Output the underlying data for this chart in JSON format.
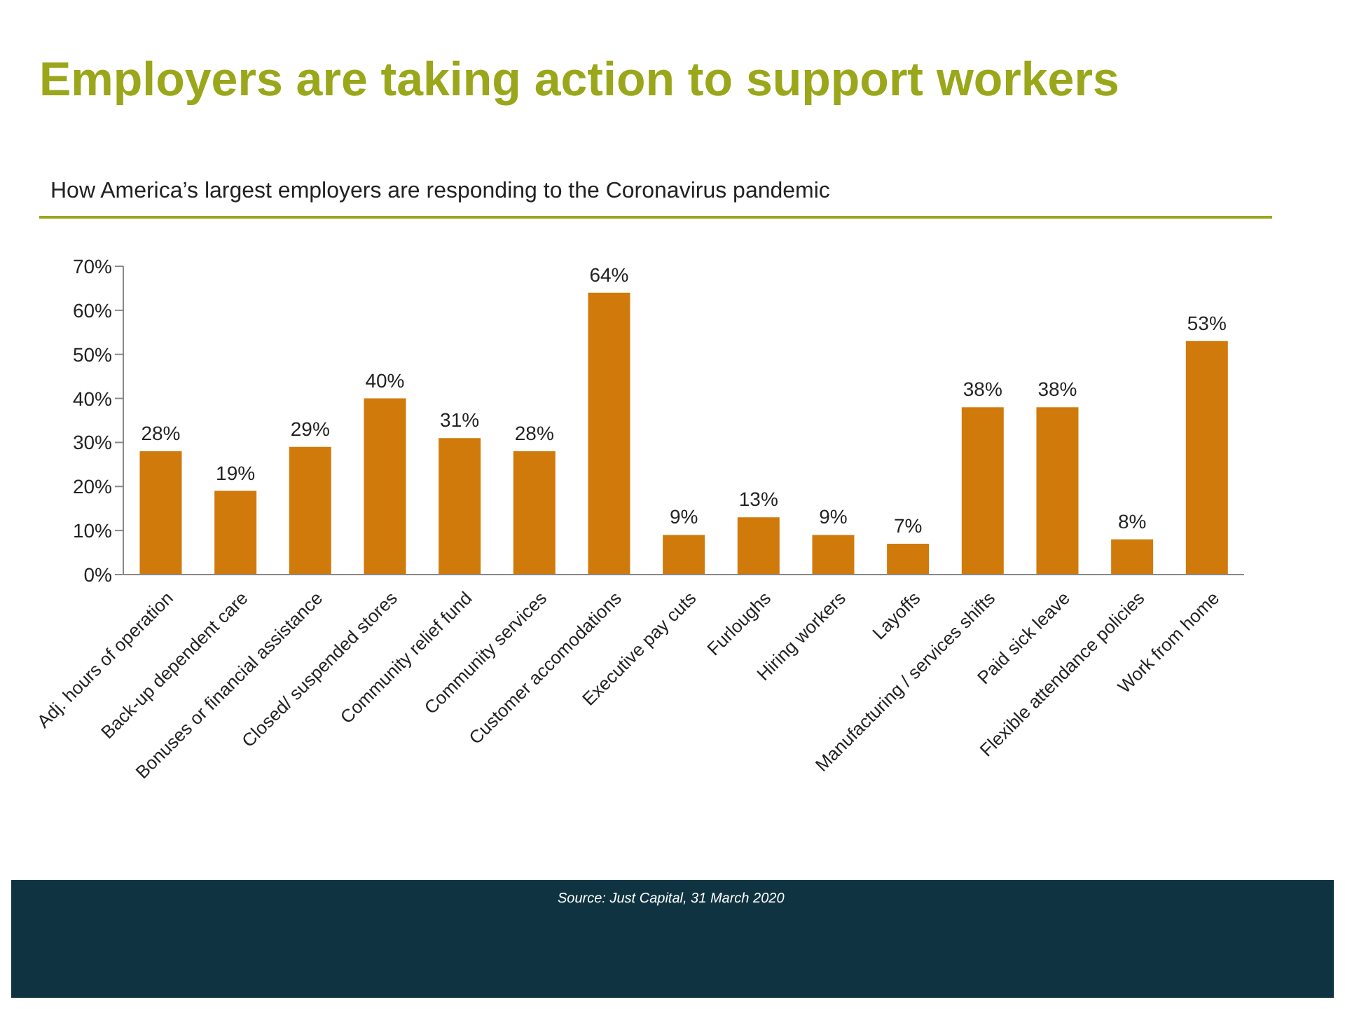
{
  "chart_data": {
    "type": "bar",
    "title": "Employers are taking action to support workers",
    "subtitle": "How America’s largest employers are responding to the Coronavirus pandemic",
    "categories": [
      "Adj. hours of operation",
      "Back-up dependent care",
      "Bonuses or financial assistance",
      "Closed/ suspended stores",
      "Community relief fund",
      "Community services",
      "Customer accomodations",
      "Executive pay cuts",
      "Furloughs",
      "Hiring workers",
      "Layoffs",
      "Manufacturing / services shifts",
      "Paid sick leave",
      "Flexible attendance policies",
      "Work from home"
    ],
    "values": [
      28,
      19,
      29,
      40,
      31,
      28,
      64,
      9,
      13,
      9,
      7,
      38,
      38,
      8,
      53
    ],
    "value_labels": [
      "28%",
      "19%",
      "29%",
      "40%",
      "31%",
      "28%",
      "64%",
      "9%",
      "13%",
      "9%",
      "7%",
      "38%",
      "38%",
      "8%",
      "53%"
    ],
    "color": "#d07a0c",
    "ylim": [
      0,
      70
    ],
    "yticks": [
      {
        "value": 0,
        "label": "0%"
      },
      {
        "value": 10,
        "label": "10%"
      },
      {
        "value": 20,
        "label": "20%"
      },
      {
        "value": 30,
        "label": "30%"
      },
      {
        "value": 40,
        "label": "40%"
      },
      {
        "value": 50,
        "label": "50%"
      },
      {
        "value": 60,
        "label": "60%"
      },
      {
        "value": 70,
        "label": "70%"
      }
    ],
    "grid": false,
    "annotations": [
      "Source: Just Capital, 31 March 2020"
    ]
  }
}
